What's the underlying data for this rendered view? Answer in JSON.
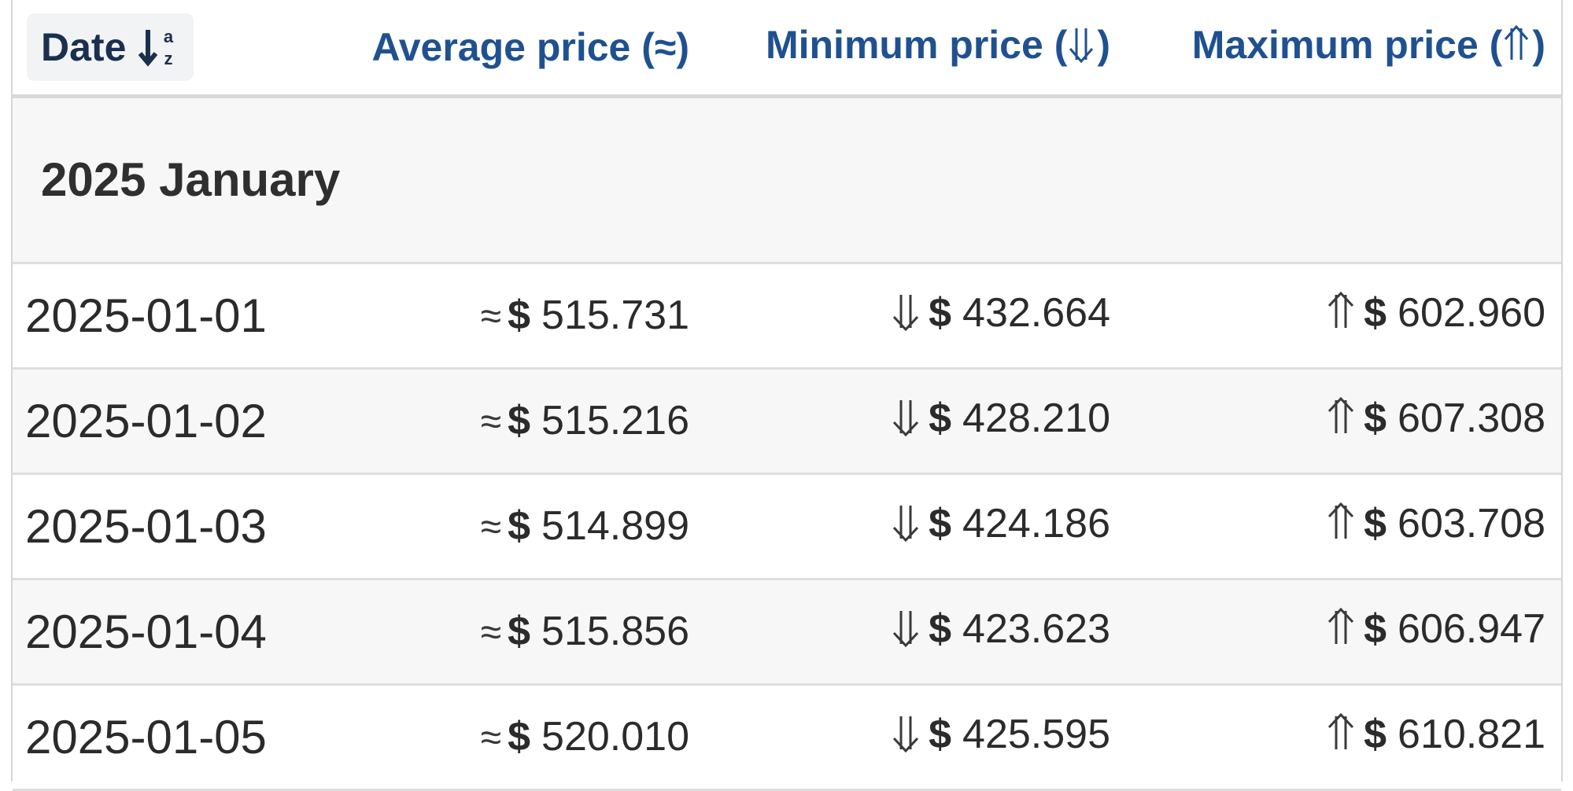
{
  "header": {
    "date_label": "Date",
    "sort_icon_letters_top": "a",
    "sort_icon_letters_bottom": "z",
    "avg_label": "Average price (≈)",
    "min_label_prefix": "Minimum price (",
    "min_label_suffix": ")",
    "max_label_prefix": "Maximum price (",
    "max_label_suffix": ")"
  },
  "group": {
    "label": "2025 January"
  },
  "symbols": {
    "approx": "≈",
    "currency": "$"
  },
  "rows": [
    {
      "date": "2025-01-01",
      "avg": "515.731",
      "min": "432.664",
      "max": "602.960"
    },
    {
      "date": "2025-01-02",
      "avg": "515.216",
      "min": "428.210",
      "max": "607.308"
    },
    {
      "date": "2025-01-03",
      "avg": "514.899",
      "min": "424.186",
      "max": "603.708"
    },
    {
      "date": "2025-01-04",
      "avg": "515.856",
      "min": "423.623",
      "max": "606.947"
    },
    {
      "date": "2025-01-05",
      "avg": "520.010",
      "min": "425.595",
      "max": "610.821"
    }
  ],
  "icons": {
    "sort": "sort-alpha-down-icon",
    "min": "double-arrow-down-icon",
    "max": "double-arrow-up-icon"
  },
  "colors": {
    "header_link": "#1f5191",
    "text": "#2b2b2b",
    "stripe": "#f7f7f7"
  }
}
